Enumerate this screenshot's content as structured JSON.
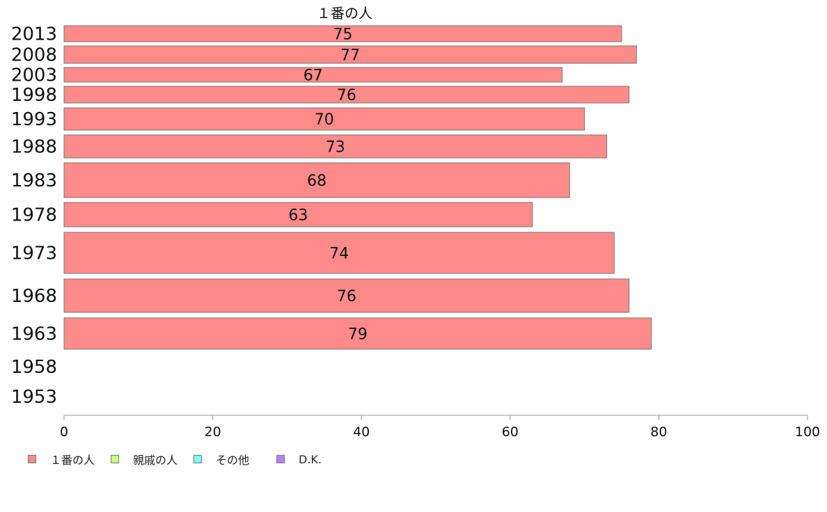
{
  "chart_data": {
    "type": "bar",
    "orientation": "horizontal",
    "series_label_on_chart": "１番の人",
    "categories": [
      "2013",
      "2008",
      "2003",
      "1998",
      "1993",
      "1988",
      "1983",
      "1978",
      "1973",
      "1968",
      "1963",
      "1958",
      "1953"
    ],
    "values": [
      75,
      77,
      67,
      76,
      70,
      73,
      68,
      63,
      74,
      76,
      79,
      null,
      null
    ],
    "xlim": [
      0,
      100
    ],
    "xticks": [
      "0",
      "20",
      "40",
      "60",
      "80",
      "100"
    ],
    "bar_color": "#ff8a8a",
    "legend": {
      "placement": "bottom-left",
      "items": [
        {
          "label": "１番の人",
          "color": "#ff8a8a"
        },
        {
          "label": "親戚の人",
          "color": "#c8ff80"
        },
        {
          "label": "その他",
          "color": "#80ffff"
        },
        {
          "label": "D.K.",
          "color": "#b380ff"
        }
      ]
    }
  }
}
